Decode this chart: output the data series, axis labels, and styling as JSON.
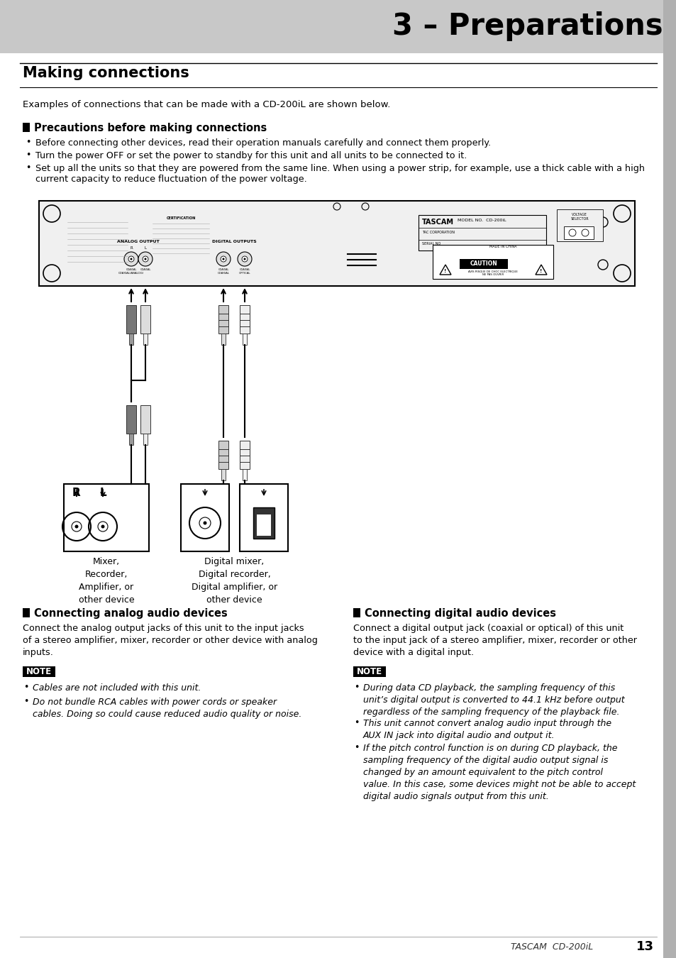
{
  "page_bg": "#ffffff",
  "header_bg": "#c8c8c8",
  "header_text": "3 – Preparations",
  "section_title": "Making connections",
  "section_intro": "Examples of connections that can be made with a CD-200iL are shown below.",
  "precautions_title": "Precautions before making connections",
  "precautions_bullets": [
    "Before connecting other devices, read their operation manuals carefully and connect them properly.",
    "Turn the power OFF or set the power to standby for this unit and all units to be connected to it.",
    "Set up all the units so that they are powered from the same line. When using a power strip, for example, use a thick cable with a high\ncurrent capacity to reduce fluctuation of the power voltage."
  ],
  "left_section_title": "Connecting analog audio devices",
  "left_section_body": "Connect the analog output jacks of this unit to the input jacks\nof a stereo amplifier, mixer, recorder or other device with analog\ninputs.",
  "left_note_title": "NOTE",
  "left_note_bullets": [
    "Cables are not included with this unit.",
    "Do not bundle RCA cables with power cords or speaker\ncables. Doing so could cause reduced audio quality or noise."
  ],
  "right_section_title": "Connecting digital audio devices",
  "right_section_body": "Connect a digital output jack (coaxial or optical) of this unit\nto the input jack of a stereo amplifier, mixer, recorder or other\ndevice with a digital input.",
  "right_note_title": "NOTE",
  "right_note_bullets": [
    "During data CD playback, the sampling frequency of this\nunit’s digital output is converted to 44.1 kHz before output\nregardless of the sampling frequency of the playback file.",
    "This unit cannot convert analog audio input through the\nAUX IN jack into digital audio and output it.",
    "If the pitch control function is on during CD playback, the\nsampling frequency of the digital audio output signal is\nchanged by an amount equivalent to the pitch control\nvalue. In this case, some devices might not be able to accept\ndigital audio signals output from this unit."
  ],
  "device_label_left": "Mixer,\nRecorder,\nAmplifier, or\nother device",
  "device_label_right": "Digital mixer,\nDigital recorder,\nDigital amplifier, or\nother device",
  "footer_text": "TASCAM  CD-200iL",
  "footer_page": "13"
}
